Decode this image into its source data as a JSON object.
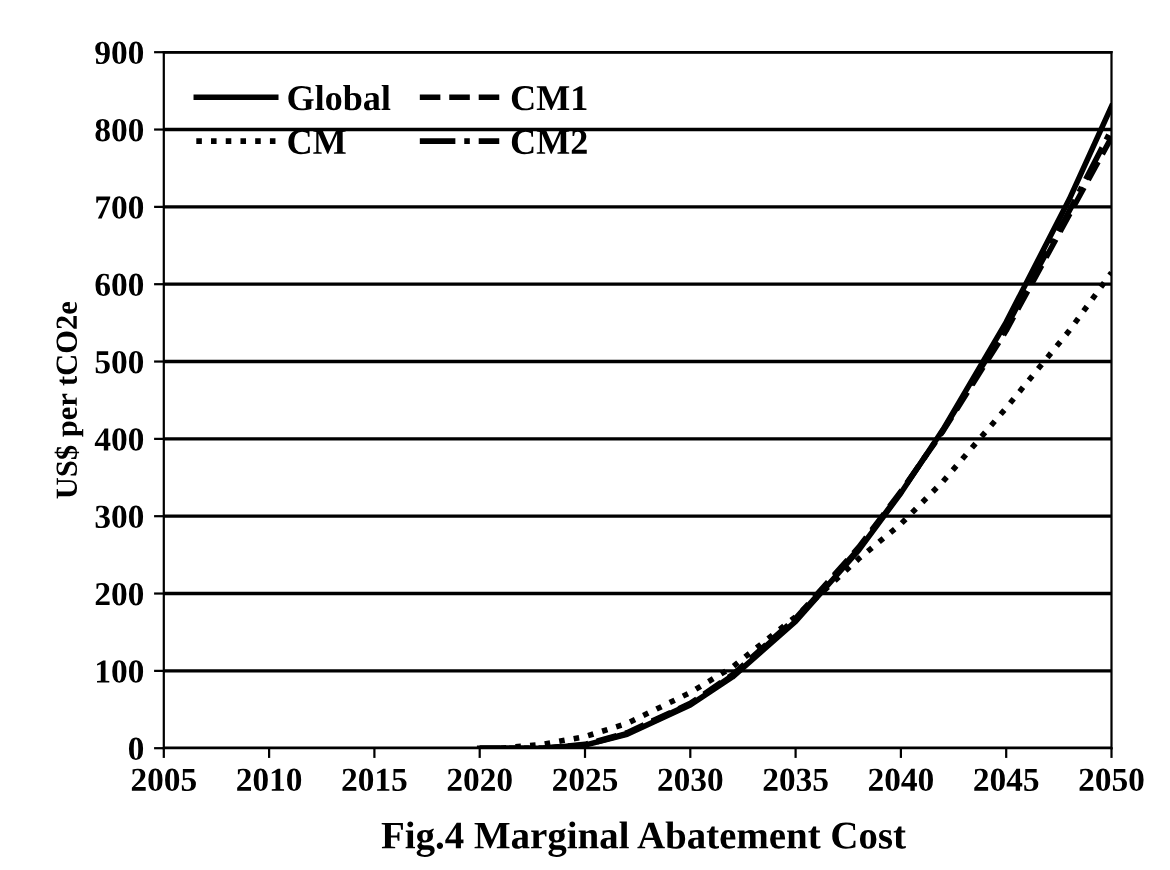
{
  "chart_data": {
    "type": "line",
    "ylabel": "US$ per tCO2e",
    "annotations": [
      "Fig.4 Marginal Abatement Cost"
    ],
    "xlim": [
      2005,
      2050
    ],
    "xticks": [
      2005,
      2010,
      2015,
      2020,
      2025,
      2030,
      2035,
      2040,
      2045,
      2050
    ],
    "ylim": [
      0,
      900
    ],
    "yticks": [
      0,
      100,
      200,
      300,
      400,
      500,
      600,
      700,
      800,
      900
    ],
    "grid": "y",
    "legend": "top left",
    "marker": "none",
    "series": [
      {
        "name": "Global",
        "color": "#000000",
        "line_style": "solid",
        "x": [
          2020,
          2023,
          2025,
          2027,
          2030,
          2032,
          2035,
          2038,
          2040,
          2042,
          2045,
          2048,
          2050
        ],
        "values": [
          0,
          0,
          4,
          18,
          56,
          92,
          164,
          256,
          330,
          412,
          551,
          710,
          830
        ]
      },
      {
        "name": "CM",
        "color": "#000000",
        "line_style": "dotted",
        "x": [
          2021,
          2023,
          2025,
          2027,
          2030,
          2032,
          2035,
          2038,
          2040,
          2042,
          2045,
          2048,
          2050
        ],
        "values": [
          0,
          5,
          15,
          32,
          72,
          105,
          170,
          245,
          290,
          345,
          440,
          540,
          615
        ]
      },
      {
        "name": "CM1",
        "color": "#000000",
        "line_style": "dashed",
        "x": [
          2020,
          2023,
          2025,
          2027,
          2030,
          2032,
          2035,
          2038,
          2040,
          2042,
          2045,
          2048,
          2050
        ],
        "values": [
          0,
          0,
          5,
          20,
          58,
          95,
          168,
          260,
          332,
          410,
          540,
          690,
          790
        ]
      },
      {
        "name": "CM2",
        "color": "#000000",
        "line_style": "dashdot",
        "x": [
          2020,
          2023,
          2025,
          2027,
          2030,
          2032,
          2035,
          2038,
          2040,
          2042,
          2045,
          2048,
          2050
        ],
        "values": [
          0,
          0,
          4,
          19,
          57,
          94,
          166,
          258,
          331,
          411,
          545,
          695,
          800
        ]
      }
    ]
  }
}
